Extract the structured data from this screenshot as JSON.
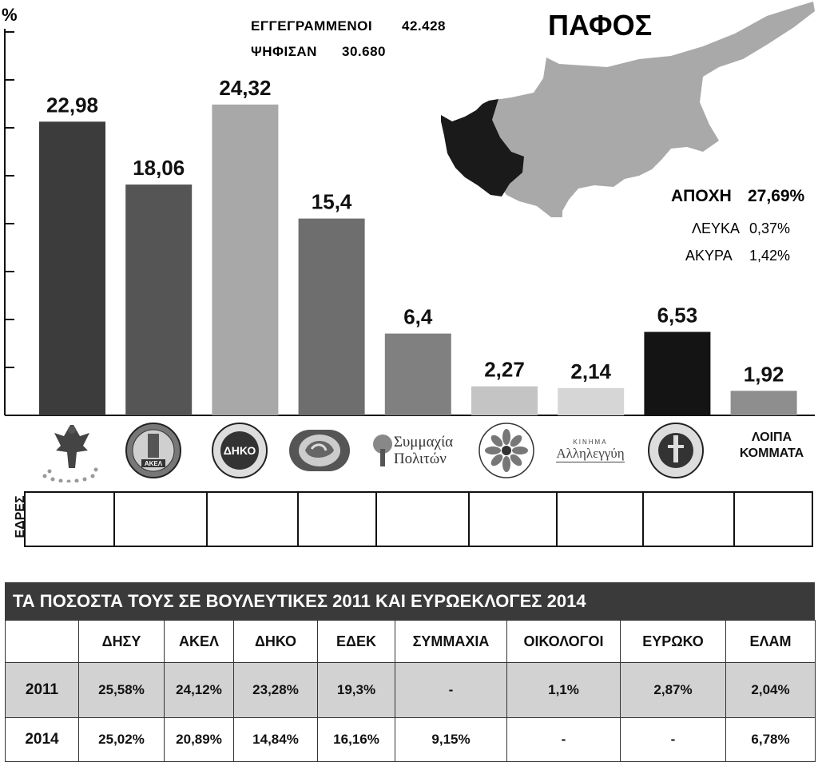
{
  "header": {
    "registered_label": "ΕΓΓΕΓΡΑΜΜΕΝΟΙ",
    "registered_value": "42.428",
    "voted_label": "ΨΗΦΙΣΑΝ",
    "voted_value": "30.680",
    "region": "ΠΑΦΟΣ"
  },
  "turnout": {
    "abstention_label": "ΑΠΟΧΗ",
    "abstention_value": "27,69%",
    "blank_label": "ΛΕΥΚΑ",
    "blank_value": "0,37%",
    "invalid_label": "ΑΚΥΡΑ",
    "invalid_value": "1,42%"
  },
  "chart_data": {
    "type": "bar",
    "ylabel": "%",
    "ylim": [
      0,
      30
    ],
    "gridline_step": 3.75,
    "value_labels": [
      "22,98",
      "18,06",
      "24,32",
      "15,4",
      "6,4",
      "2,27",
      "2,14",
      "6,53",
      "1,92"
    ],
    "values": [
      22.98,
      18.06,
      24.32,
      15.4,
      6.4,
      2.27,
      2.14,
      6.53,
      1.92
    ],
    "colors": [
      "#3c3c3c",
      "#555555",
      "#a8a8a8",
      "#6e6e6e",
      "#808080",
      "#c4c4c4",
      "#d6d6d6",
      "#141414",
      "#8e8e8e"
    ]
  },
  "logos": {
    "symmachia_line1": "Συμμαχία",
    "symmachia_line2": "Πολιτών",
    "allileggyi_small": "ΚΙΝΗΜΑ",
    "allileggyi_main": "Αλληλεγγύη",
    "diko_text": "ΔΗΚΟ",
    "akel_text": "ΑΚΕΛ",
    "others_line1": "ΛΟΙΠΑ",
    "others_line2": "ΚΟΜΜΑΤΑ"
  },
  "seats": {
    "label": "ΕΔΡΕΣ"
  },
  "history": {
    "title": "ΤΑ ΠΟΣΟΣΤΑ ΤΟΥΣ ΣΕ ΒΟΥΛΕΥΤΙΚΕΣ 2011 ΚΑΙ ΕΥΡΩΕΚΛΟΓΕΣ 2014",
    "columns": [
      "ΔΗΣΥ",
      "ΑΚΕΛ",
      "ΔΗΚΟ",
      "ΕΔΕΚ",
      "ΣΥΜΜΑΧΙΑ",
      "ΟΙΚΟΛΟΓΟΙ",
      "ΕΥΡΩΚΟ",
      "ΕΛΑΜ"
    ],
    "rows": [
      {
        "year": "2011",
        "values": [
          "25,58%",
          "24,12%",
          "23,28%",
          "19,3%",
          "-",
          "1,1%",
          "2,87%",
          "2,04%"
        ]
      },
      {
        "year": "2014",
        "values": [
          "25,02%",
          "20,89%",
          "14,84%",
          "16,16%",
          "9,15%",
          "-",
          "-",
          "6,78%"
        ]
      }
    ]
  }
}
